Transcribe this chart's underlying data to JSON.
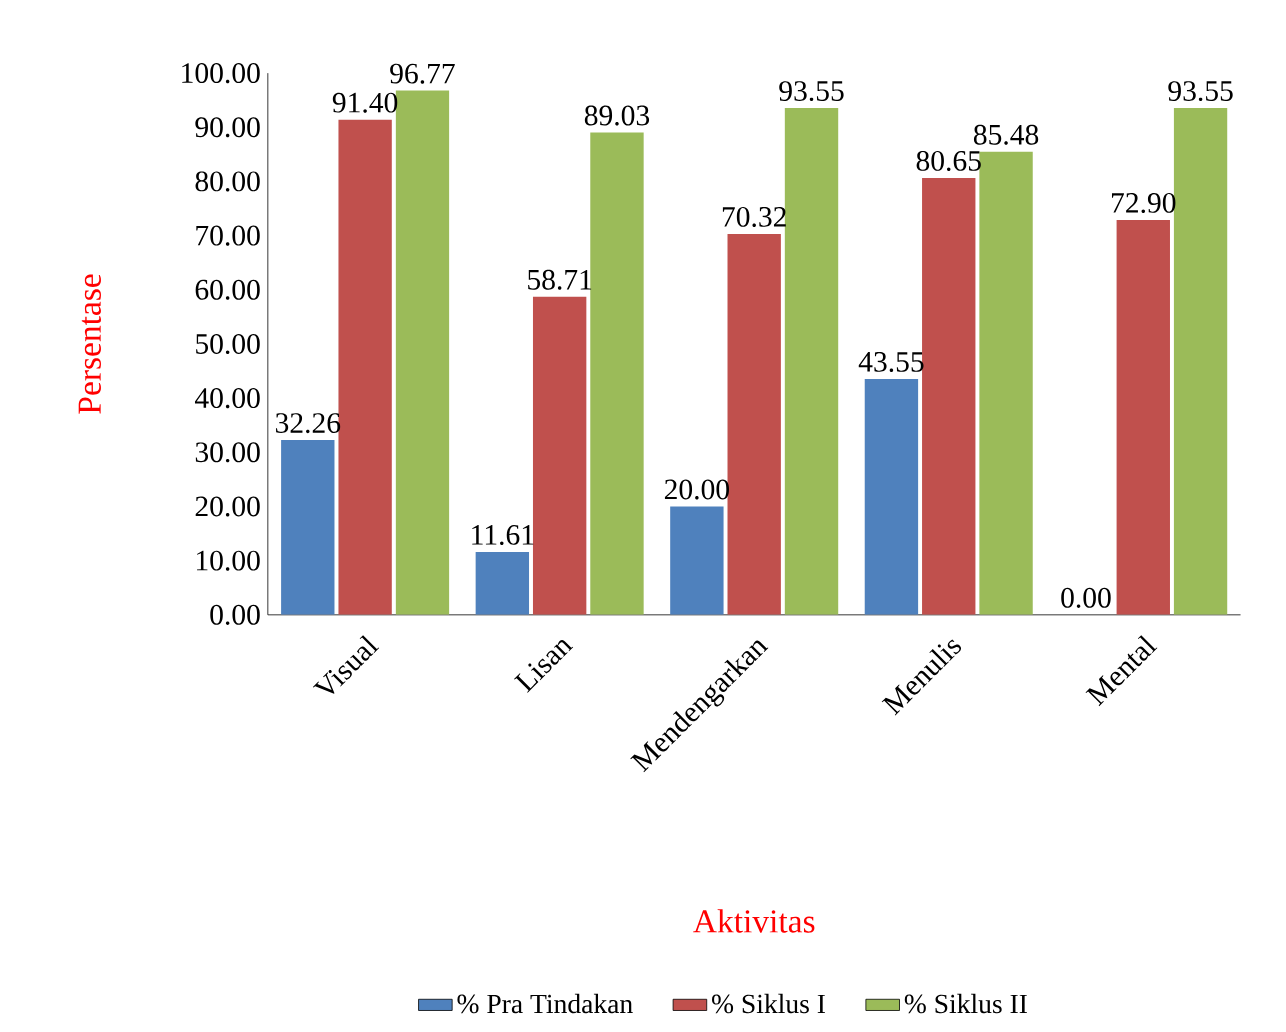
{
  "chart_data": {
    "type": "bar",
    "xlabel": "Aktivitas",
    "ylabel": "Persentase",
    "categories": [
      "Visual",
      "Lisan",
      "Mendengarkan",
      "Menulis",
      "Mental"
    ],
    "series": [
      {
        "name": "% Pra Tindakan",
        "color": "#4f81bd",
        "values": [
          32.26,
          11.61,
          20.0,
          43.55,
          0.0
        ],
        "value_labels": [
          "32.26",
          "11.61",
          "20.00",
          "43.55",
          "0.00"
        ]
      },
      {
        "name": "% Siklus I",
        "color": "#c0504d",
        "values": [
          91.4,
          58.71,
          70.32,
          80.65,
          72.9
        ],
        "value_labels": [
          "91.40",
          "58.71",
          "70.32",
          "80.65",
          "72.90"
        ]
      },
      {
        "name": "% Siklus II",
        "color": "#9bbb59",
        "values": [
          96.77,
          89.03,
          93.55,
          85.48,
          93.55
        ],
        "value_labels": [
          "96.77",
          "89.03",
          "93.55",
          "85.48",
          "93.55"
        ]
      }
    ],
    "ylim": [
      0,
      100
    ],
    "yticks": [
      {
        "value": 0,
        "label": "0.00"
      },
      {
        "value": 10,
        "label": "10.00"
      },
      {
        "value": 20,
        "label": "20.00"
      },
      {
        "value": 30,
        "label": "30.00"
      },
      {
        "value": 40,
        "label": "40.00"
      },
      {
        "value": 50,
        "label": "50.00"
      },
      {
        "value": 60,
        "label": "60.00"
      },
      {
        "value": 70,
        "label": "70.00"
      },
      {
        "value": 80,
        "label": "80.00"
      },
      {
        "value": 90,
        "label": "90.00"
      },
      {
        "value": 100,
        "label": "100.00"
      }
    ],
    "legend": "bottom"
  }
}
